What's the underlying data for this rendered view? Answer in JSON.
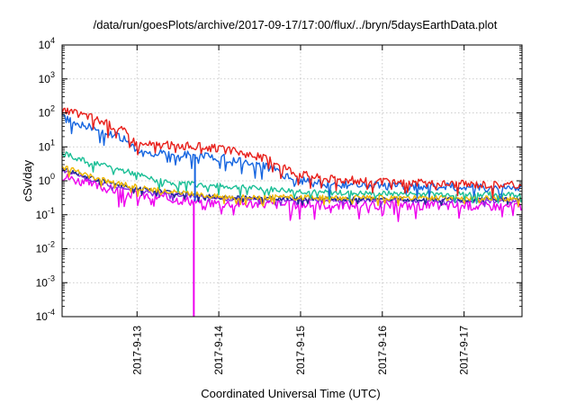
{
  "chart_data": {
    "type": "line",
    "title": "/data/run/goesPlots/archive/2017-09-17/17:00/flux/../bryn/5daysEarthData.plot",
    "xlabel": "Coordinated Universal Time (UTC)",
    "ylabel": "cSv/day",
    "yscale": "log",
    "ylim": [
      0.0001,
      10000
    ],
    "xlim": [
      "2017-09-12 02:00",
      "2017-09-17 17:00"
    ],
    "grid": true,
    "legend": "none",
    "x_ticks": [
      "2017-9-13",
      "2017-9-14",
      "2017-9-15",
      "2017-9-16",
      "2017-9-17"
    ],
    "y_ticks": [
      {
        "value": 0.0001,
        "mantissa": "10",
        "exp": "-4"
      },
      {
        "value": 0.001,
        "mantissa": "10",
        "exp": "-3"
      },
      {
        "value": 0.01,
        "mantissa": "10",
        "exp": "-2"
      },
      {
        "value": 0.1,
        "mantissa": "10",
        "exp": "-1"
      },
      {
        "value": 1,
        "mantissa": "10",
        "exp": "0"
      },
      {
        "value": 10,
        "mantissa": "10",
        "exp": "1"
      },
      {
        "value": 100,
        "mantissa": "10",
        "exp": "2"
      },
      {
        "value": 1000,
        "mantissa": "10",
        "exp": "3"
      },
      {
        "value": 10000,
        "mantissa": "10",
        "exp": "4"
      }
    ],
    "series": [
      {
        "color": "#e8201b",
        "noise": 0.12,
        "x": [
          "2017-09-12 02:00",
          "2017-09-12 10:00",
          "2017-09-12 20:00",
          "2017-09-13 00:00",
          "2017-09-13 12:00",
          "2017-09-13 20:00",
          "2017-09-14 06:00",
          "2017-09-14 16:00",
          "2017-09-14 22:00",
          "2017-09-15 06:00",
          "2017-09-16 00:00",
          "2017-09-17 00:00",
          "2017-09-17 17:00"
        ],
        "y": [
          115,
          80,
          30,
          12,
          11,
          10,
          7,
          4,
          1.8,
          1.2,
          0.9,
          0.8,
          0.75
        ]
      },
      {
        "color": "#1565e0",
        "noise": 0.12,
        "x": [
          "2017-09-12 02:00",
          "2017-09-12 10:00",
          "2017-09-12 20:00",
          "2017-09-13 00:00",
          "2017-09-13 12:00",
          "2017-09-13 20:00",
          "2017-09-14 06:00",
          "2017-09-14 16:00",
          "2017-09-14 22:00",
          "2017-09-15 06:00",
          "2017-09-16 00:00",
          "2017-09-17 00:00",
          "2017-09-17 17:00"
        ],
        "y": [
          70,
          40,
          17,
          7,
          6,
          5.5,
          4,
          2.2,
          1.1,
          0.8,
          0.7,
          0.65,
          0.6
        ]
      },
      {
        "color": "#1bbf96",
        "noise": 0.08,
        "x": [
          "2017-09-12 02:00",
          "2017-09-12 10:00",
          "2017-09-12 22:00",
          "2017-09-13 06:00",
          "2017-09-13 18:00",
          "2017-09-14 12:00",
          "2017-09-15 06:00",
          "2017-09-16 00:00",
          "2017-09-17 17:00"
        ],
        "y": [
          6.5,
          3.5,
          1.8,
          1.0,
          0.75,
          0.6,
          0.45,
          0.42,
          0.4
        ]
      },
      {
        "color": "#f0b800",
        "noise": 0.08,
        "x": [
          "2017-09-12 02:00",
          "2017-09-12 12:00",
          "2017-09-13 00:00",
          "2017-09-13 12:00",
          "2017-09-14 00:00",
          "2017-09-15 00:00",
          "2017-09-16 00:00",
          "2017-09-17 17:00"
        ],
        "y": [
          2.6,
          1.2,
          0.65,
          0.45,
          0.35,
          0.32,
          0.31,
          0.3
        ]
      },
      {
        "color": "#1c2b8f",
        "noise": 0.06,
        "x": [
          "2017-09-12 02:00",
          "2017-09-12 12:00",
          "2017-09-13 00:00",
          "2017-09-13 12:00",
          "2017-09-14 00:00",
          "2017-09-15 00:00",
          "2017-09-16 00:00",
          "2017-09-17 17:00"
        ],
        "y": [
          2.3,
          1.1,
          0.6,
          0.42,
          0.33,
          0.3,
          0.29,
          0.28
        ]
      },
      {
        "color": "#8a2be2",
        "noise": 0.06,
        "x": [
          "2017-09-12 02:00",
          "2017-09-12 12:00",
          "2017-09-13 00:00",
          "2017-09-13 12:00",
          "2017-09-14 00:00",
          "2017-09-15 00:00",
          "2017-09-16 00:00",
          "2017-09-17 17:00"
        ],
        "y": [
          2.0,
          0.95,
          0.52,
          0.38,
          0.3,
          0.27,
          0.26,
          0.25
        ]
      },
      {
        "color": "#ee00ee",
        "noise": 0.14,
        "x": [
          "2017-09-12 02:00",
          "2017-09-12 12:00",
          "2017-09-13 00:00",
          "2017-09-13 12:00",
          "2017-09-14 00:00",
          "2017-09-15 00:00",
          "2017-09-16 00:00",
          "2017-09-17 17:00"
        ],
        "y": [
          1.4,
          0.7,
          0.38,
          0.28,
          0.22,
          0.2,
          0.19,
          0.18
        ]
      }
    ],
    "dropouts": [
      {
        "x": "2017-09-13 16:40",
        "from": 0.22,
        "to": 0.0001,
        "color": "#ee00ee"
      },
      {
        "x": "2017-09-13 17:00",
        "from": 6,
        "to": 0.25,
        "color": "#1565e0"
      }
    ]
  }
}
